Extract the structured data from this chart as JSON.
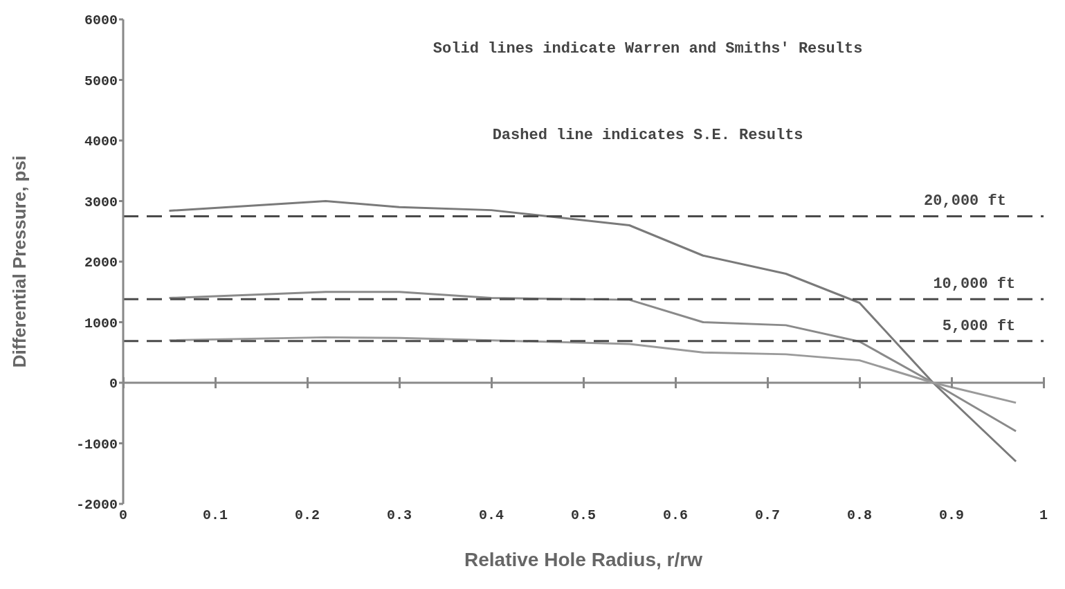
{
  "chart_data": {
    "type": "line",
    "xlabel": "Relative Hole Radius, r/rw",
    "ylabel": "Differential Pressure, psi",
    "annotations": [
      "Solid lines indicate Warren and Smiths' Results",
      "Dashed line indicates S.E. Results",
      {
        "text": "20,000 ft",
        "x": 0.87,
        "y": 2750
      },
      {
        "text": "10,000 ft",
        "x": 0.88,
        "y": 1380
      },
      {
        "text": "5,000 ft",
        "x": 0.89,
        "y": 690
      }
    ],
    "series": [
      {
        "color": "#7a7a7a",
        "line_style": "solid",
        "x": [
          0.05,
          0.22,
          0.3,
          0.4,
          0.55,
          0.63,
          0.72,
          0.8,
          0.88,
          0.97
        ],
        "values": [
          2840,
          3000,
          2900,
          2850,
          2600,
          2100,
          1800,
          1320,
          0,
          -1300
        ]
      },
      {
        "color": "#8a8a8a",
        "line_style": "solid",
        "x": [
          0.05,
          0.22,
          0.3,
          0.4,
          0.55,
          0.63,
          0.72,
          0.8,
          0.88,
          0.97
        ],
        "values": [
          1400,
          1500,
          1500,
          1400,
          1370,
          1000,
          950,
          680,
          0,
          -800
        ]
      },
      {
        "color": "#9a9a9a",
        "line_style": "solid",
        "x": [
          0.05,
          0.22,
          0.3,
          0.4,
          0.55,
          0.63,
          0.72,
          0.8,
          0.88,
          0.97
        ],
        "values": [
          700,
          750,
          740,
          700,
          640,
          500,
          470,
          370,
          0,
          -330
        ]
      },
      {
        "color": "#4a4a4a",
        "line_style": "dashed",
        "x": [
          0,
          1
        ],
        "values": [
          2750,
          2750
        ]
      },
      {
        "color": "#4a4a4a",
        "line_style": "dashed",
        "x": [
          0,
          1
        ],
        "values": [
          1380,
          1380
        ]
      },
      {
        "color": "#4a4a4a",
        "line_style": "dashed",
        "x": [
          0,
          1
        ],
        "values": [
          690,
          690
        ]
      }
    ],
    "xlim": [
      0,
      1
    ],
    "xticks": [
      0,
      0.1,
      0.2,
      0.3,
      0.4,
      0.5,
      0.6,
      0.7,
      0.8,
      0.9,
      1
    ],
    "ylim": [
      -2000,
      6000
    ],
    "yticks": [
      -2000,
      -1000,
      0,
      1000,
      2000,
      3000,
      4000,
      5000,
      6000
    ],
    "ref_lines": [
      {
        "axis": "y",
        "value": 0,
        "color": "#8a8a8a"
      }
    ],
    "grid": false,
    "legend": false,
    "marker": "none"
  }
}
